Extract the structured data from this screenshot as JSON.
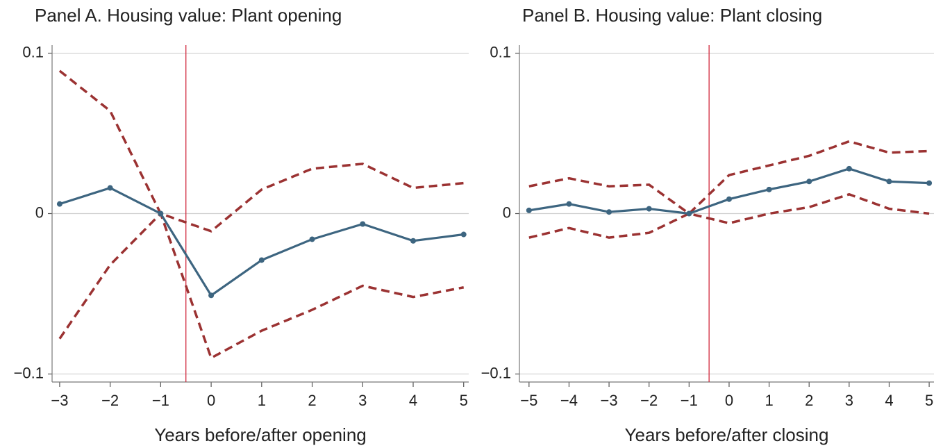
{
  "chart_data": [
    {
      "type": "line",
      "title": "Panel A. Housing value: Plant opening",
      "x_label": "Years before/after opening",
      "x": [
        -3,
        -2,
        -1,
        0,
        1,
        2,
        3,
        4,
        5
      ],
      "series": [
        {
          "color": "#9b3232",
          "dash": true,
          "values": [
            0.089,
            0.064,
            0,
            -0.011,
            0.015,
            0.028,
            0.031,
            0.016,
            0.019
          ]
        },
        {
          "color": "#9b3232",
          "dash": true,
          "values": [
            -0.078,
            -0.032,
            0,
            -0.09,
            -0.073,
            -0.06,
            -0.045,
            -0.052,
            -0.046
          ]
        },
        {
          "color": "#3d6580",
          "dash": false,
          "values": [
            0.006,
            0.016,
            0,
            -0.051,
            -0.029,
            -0.016,
            -0.0065,
            -0.017,
            -0.013
          ]
        }
      ],
      "vline": -0.5,
      "vline_color": "#d0283c",
      "xlim": [
        -3.15,
        5.1
      ],
      "ylim": [
        -0.105,
        0.105
      ],
      "xticks": [
        {
          "value": -3,
          "label": "−3"
        },
        {
          "value": -2,
          "label": "−2"
        },
        {
          "value": -1,
          "label": "−1"
        },
        0,
        1,
        2,
        3,
        4,
        5
      ],
      "yticks": [
        {
          "value": -0.1,
          "label": "−0.1"
        },
        0,
        0.1
      ],
      "grid": true
    },
    {
      "type": "line",
      "title": "Panel B. Housing value: Plant closing",
      "x_label": "Years before/after closing",
      "x": [
        -5,
        -4,
        -3,
        -2,
        -1,
        0,
        1,
        2,
        3,
        4,
        5
      ],
      "series": [
        {
          "color": "#9b3232",
          "dash": true,
          "values": [
            0.017,
            0.022,
            0.017,
            0.018,
            0,
            0.024,
            0.03,
            0.036,
            0.045,
            0.038,
            0.039
          ]
        },
        {
          "color": "#9b3232",
          "dash": true,
          "values": [
            -0.015,
            -0.009,
            -0.015,
            -0.012,
            0,
            -0.006,
            0.0,
            0.004,
            0.012,
            0.003,
            0
          ]
        },
        {
          "color": "#3d6580",
          "dash": false,
          "values": [
            0.002,
            0.006,
            0.001,
            0.003,
            0,
            0.009,
            0.015,
            0.02,
            0.028,
            0.02,
            0.019
          ]
        }
      ],
      "vline": -0.5,
      "vline_color": "#d0283c",
      "xlim": [
        -5.24,
        5.12
      ],
      "ylim": [
        -0.105,
        0.105
      ],
      "xticks": [
        {
          "value": -5,
          "label": "−5"
        },
        {
          "value": -4,
          "label": "−4"
        },
        {
          "value": -3,
          "label": "−3"
        },
        {
          "value": -2,
          "label": "−2"
        },
        {
          "value": -1,
          "label": "−1"
        },
        0,
        1,
        2,
        3,
        4,
        5
      ],
      "yticks": [
        {
          "value": -0.1,
          "label": "−0.1"
        },
        0,
        0.1
      ],
      "grid": true
    }
  ]
}
